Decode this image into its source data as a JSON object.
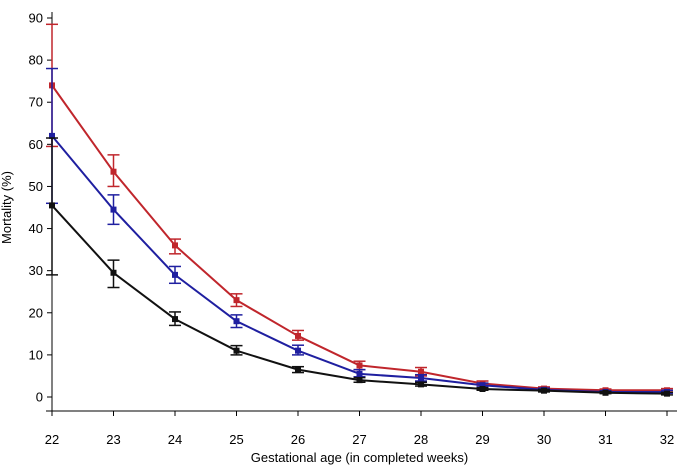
{
  "chart_data": {
    "type": "line",
    "title": "",
    "xlabel": "Gestational age (in completed weeks)",
    "ylabel": "Mortality (%)",
    "x": [
      22,
      23,
      24,
      25,
      26,
      27,
      28,
      29,
      30,
      31,
      32
    ],
    "xlim": [
      22,
      32
    ],
    "ylim": [
      0,
      90
    ],
    "yticks": [
      0,
      10,
      20,
      30,
      40,
      50,
      60,
      70,
      80,
      90
    ],
    "grid": false,
    "legend": "none",
    "series": [
      {
        "name": "red series",
        "color": "#c0262c",
        "values": [
          74,
          53.5,
          36,
          23,
          14.5,
          7.5,
          6,
          3.2,
          2,
          1.6,
          1.6
        ],
        "lower": [
          59.5,
          50,
          34,
          21.5,
          13.5,
          6.5,
          5,
          2.8,
          1.6,
          1.3,
          1.2
        ],
        "upper": [
          88.5,
          57.5,
          37.5,
          24.5,
          15.8,
          8.5,
          7,
          3.8,
          2.4,
          1.9,
          2
        ]
      },
      {
        "name": "blue series",
        "color": "#1f1fa0",
        "values": [
          62,
          44.5,
          29,
          18,
          11,
          5.5,
          4.5,
          2.8,
          1.7,
          1.2,
          1.2
        ],
        "lower": [
          46,
          41,
          27,
          16.5,
          10,
          4.8,
          3.8,
          2.4,
          1.4,
          1,
          0.9
        ],
        "upper": [
          78,
          48,
          31,
          19.5,
          12.3,
          6.5,
          5.3,
          3.3,
          2.1,
          1.5,
          1.6
        ]
      },
      {
        "name": "black series",
        "color": "#111111",
        "values": [
          45.5,
          29.5,
          18.5,
          11,
          6.5,
          4,
          3,
          1.9,
          1.5,
          1,
          0.8
        ],
        "lower": [
          29,
          26,
          17,
          10,
          5.8,
          3.5,
          2.6,
          1.6,
          1.2,
          0.8,
          0.5
        ],
        "upper": [
          61.5,
          32.5,
          20.2,
          12.2,
          7.2,
          4.6,
          3.5,
          2.2,
          1.8,
          1.3,
          1.1
        ]
      }
    ]
  }
}
